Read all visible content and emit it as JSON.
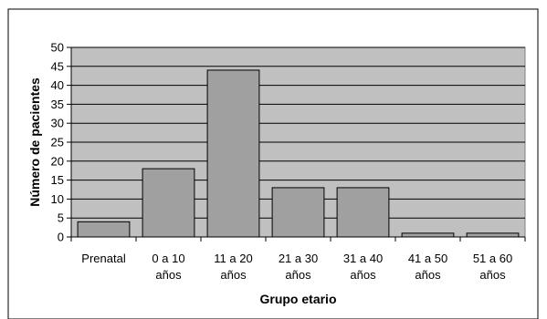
{
  "chart_data": {
    "type": "bar",
    "title": "",
    "xlabel": "Grupo etario",
    "ylabel": "Número de pacientes",
    "categories": [
      [
        "Prenatal"
      ],
      [
        "0 a 10",
        "años"
      ],
      [
        "11 a 20",
        "años"
      ],
      [
        "21 a 30",
        "años"
      ],
      [
        "31 a 40",
        "años"
      ],
      [
        "41 a 50",
        "años"
      ],
      [
        "51 a 60",
        "años"
      ]
    ],
    "values": [
      4,
      18,
      44,
      13,
      13,
      1,
      1
    ],
    "ylim": [
      0,
      50
    ],
    "yticks": [
      0,
      5,
      10,
      15,
      20,
      25,
      30,
      35,
      40,
      45,
      50
    ],
    "grid": true,
    "legend": "none",
    "colors": {
      "plot_background": "#c0c0c0",
      "bar_fill": "#a0a0a0",
      "bar_stroke": "#000000",
      "gridline": "#000000",
      "frame": "#000000"
    }
  }
}
